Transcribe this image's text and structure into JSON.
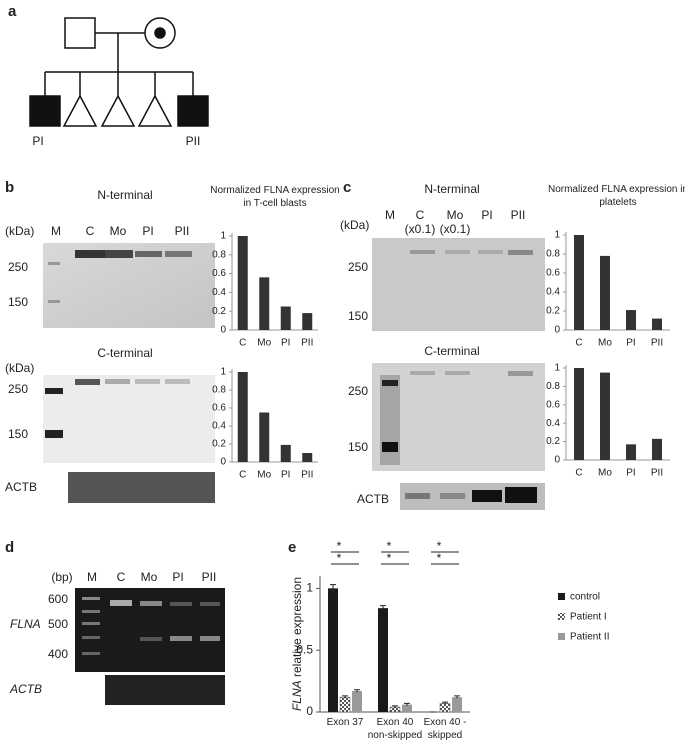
{
  "panel_a": {
    "label": "a",
    "patients": [
      "PI",
      "PII"
    ]
  },
  "panel_b": {
    "label": "b",
    "n_terminal": {
      "title": "N-terminal",
      "unit": "(kDa)",
      "lanes": [
        "M",
        "C",
        "Mo",
        "PI",
        "PII"
      ],
      "markers": [
        250,
        150
      ]
    },
    "c_terminal": {
      "title": "C-terminal",
      "unit": "(kDa)",
      "markers": [
        250,
        150
      ]
    },
    "loading": "ACTB"
  },
  "panel_c": {
    "label": "c",
    "n_terminal": {
      "title": "N-terminal",
      "unit": "(kDa)",
      "lanes": [
        "M",
        "C",
        "Mo",
        "PI",
        "PII"
      ],
      "dilutions": [
        "(x0.1)",
        "(x0.1)"
      ],
      "markers": [
        250,
        150
      ]
    },
    "c_terminal": {
      "title": "C-terminal",
      "markers": [
        250,
        150
      ]
    },
    "loading": "ACTB"
  },
  "panel_d": {
    "label": "d",
    "unit": "(bp)",
    "lanes": [
      "M",
      "C",
      "Mo",
      "PI",
      "PII"
    ],
    "markers": [
      600,
      500,
      400
    ],
    "rows": [
      "FLNA",
      "ACTB"
    ]
  },
  "panel_e": {
    "label": "e"
  },
  "chart_data": [
    {
      "type": "bar",
      "title": "Normalized FLNA expression in T-cell blasts",
      "categories": [
        "C",
        "Mo",
        "PI",
        "PII"
      ],
      "values": [
        1,
        0.56,
        0.25,
        0.18
      ],
      "color": "#333333",
      "ylim": [
        0,
        1
      ],
      "yticks": [
        0,
        0.2,
        0.4,
        0.6,
        0.8,
        1
      ]
    },
    {
      "type": "bar",
      "categories": [
        "C",
        "Mo",
        "PI",
        "PII"
      ],
      "values": [
        1,
        0.55,
        0.19,
        0.1
      ],
      "color": "#333333",
      "ylim": [
        0,
        1
      ],
      "yticks": [
        0,
        0.2,
        0.4,
        0.6,
        0.8,
        1
      ]
    },
    {
      "type": "bar",
      "title": "Normalized FLNA expression in platelets",
      "categories": [
        "C",
        "Mo",
        "PI",
        "PII"
      ],
      "values": [
        1,
        0.78,
        0.21,
        0.12
      ],
      "color": "#333333",
      "ylim": [
        0,
        1
      ],
      "yticks": [
        0,
        0.2,
        0.4,
        0.6,
        0.8,
        1
      ]
    },
    {
      "type": "bar",
      "categories": [
        "C",
        "Mo",
        "PI",
        "PII"
      ],
      "values": [
        1,
        0.95,
        0.17,
        0.23
      ],
      "color": "#333333",
      "ylim": [
        0,
        1
      ],
      "yticks": [
        0,
        0.2,
        0.4,
        0.6,
        0.8,
        1
      ]
    },
    {
      "type": "grouped-bar",
      "y_label_gene": "FLNA",
      "y_label": "relative expression",
      "categories": [
        "Exon 37",
        "Exon 40 non-skipped",
        "Exon 40 -skipped"
      ],
      "series": [
        {
          "name": "control",
          "color": "#1a1a1a",
          "values": [
            1,
            0.84,
            0
          ],
          "errors": [
            0.03,
            0.02,
            0
          ]
        },
        {
          "name": "Patient I",
          "color": "checker",
          "values": [
            0.12,
            0.04,
            0.07
          ],
          "errors": [
            0.01,
            0.01,
            0.01
          ]
        },
        {
          "name": "Patient II",
          "color": "#999999",
          "values": [
            0.17,
            0.06,
            0.12
          ],
          "errors": [
            0.01,
            0.01,
            0.01
          ]
        }
      ],
      "significance": [
        [
          "*",
          "*"
        ],
        [
          "*",
          "*"
        ],
        [
          "*",
          "*"
        ]
      ],
      "ylim": [
        0,
        1.1
      ],
      "yticks": [
        0,
        0.5,
        1
      ],
      "legend": "right"
    }
  ]
}
